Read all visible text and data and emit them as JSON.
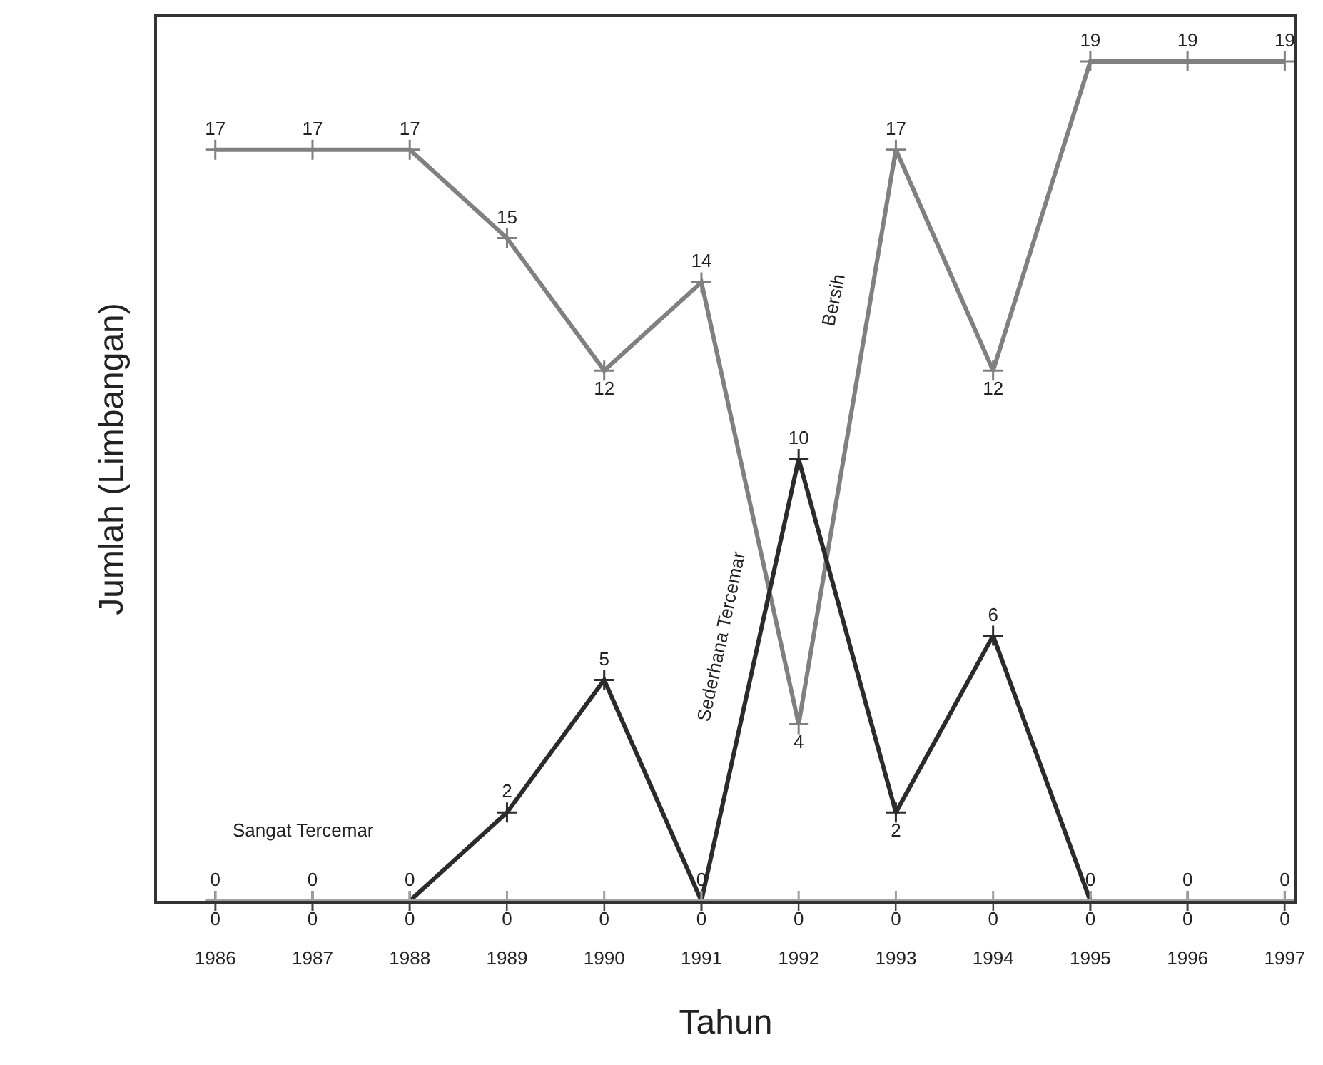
{
  "chart_data": {
    "type": "line",
    "xlabel": "Tahun",
    "ylabel": "Jumlah (Limbangan)",
    "categories": [
      "1986",
      "1987",
      "1988",
      "1989",
      "1990",
      "1991",
      "1992",
      "1993",
      "1994",
      "1995",
      "1996",
      "1997"
    ],
    "series": [
      {
        "name": "Bersih",
        "color": "#808080",
        "values": [
          17,
          17,
          17,
          15,
          12,
          14,
          4,
          17,
          12,
          19,
          19,
          19
        ]
      },
      {
        "name": "Sederhana Tercemar",
        "color": "#2b2b2b",
        "values": [
          0,
          0,
          0,
          2,
          5,
          0,
          10,
          2,
          6,
          0,
          0,
          0
        ]
      },
      {
        "name": "Sangat Tercemar",
        "color": "#a0a0a0",
        "values": [
          0,
          0,
          0,
          0,
          0,
          0,
          0,
          0,
          0,
          0,
          0,
          0
        ]
      }
    ],
    "ylim": [
      0,
      20
    ],
    "tick_labels": "x",
    "data_labels": true,
    "legend": false,
    "marker": "cross"
  }
}
